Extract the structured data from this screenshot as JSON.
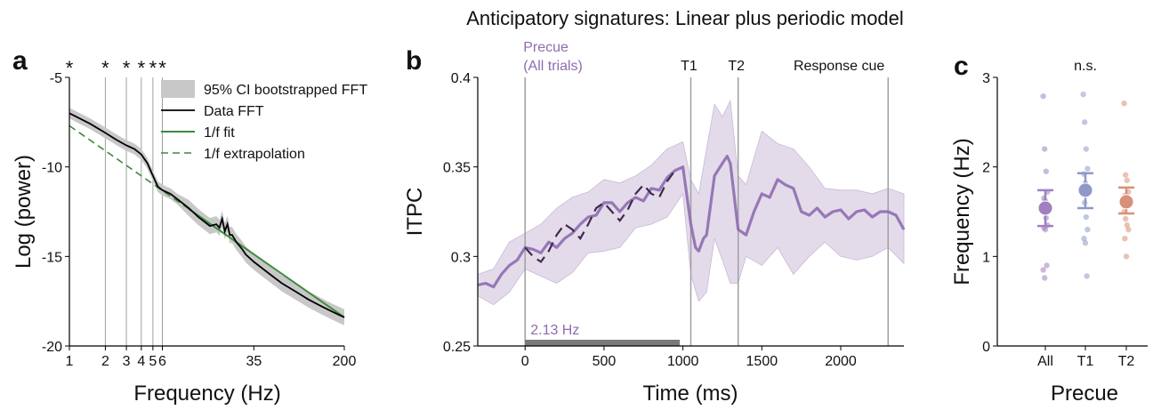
{
  "figure_title": "Anticipatory signatures: Linear plus periodic model",
  "colors": {
    "purple": "#8E6CB0",
    "purple_dark": "#3F2A4E",
    "purple_fill": "#E3DBEA",
    "green": "#3C8A3C",
    "gray_ci": "#C8C8C8",
    "vline": "#A0A0A0",
    "bar": "#7A7A7A",
    "blue": "#8F99C8",
    "orange": "#D89078",
    "all_purple": "#A080C0"
  },
  "chart_data": [
    {
      "panel": "a",
      "type": "line",
      "xlabel": "Frequency (Hz)",
      "ylabel": "Log (power)",
      "xscale": "log",
      "xlim": [
        1,
        200
      ],
      "ylim": [
        -20,
        -5
      ],
      "xticks": [
        1,
        2,
        3,
        4,
        5,
        6,
        35,
        200
      ],
      "xtick_labels": [
        "1",
        "2",
        "3",
        "4",
        "5",
        "6",
        "35",
        "200"
      ],
      "yticks": [
        -5,
        -10,
        -15,
        -20
      ],
      "ytick_labels": [
        "-5",
        "-10",
        "-15",
        "-20"
      ],
      "vlines": [
        2,
        3,
        4,
        5,
        6
      ],
      "significance_markers": [
        1,
        2,
        3,
        4,
        5,
        6
      ],
      "significance_symbol": "*",
      "legend": [
        "95% CI bootstrapped FFT",
        "Data FFT",
        "1/f fit",
        "1/f extrapolation"
      ],
      "legend_position": "top-right",
      "series": [
        {
          "name": "Data FFT",
          "x": [
            1,
            1.5,
            2,
            2.5,
            3,
            3.5,
            4,
            4.5,
            5,
            5.5,
            6,
            7,
            8,
            10,
            12,
            15,
            17,
            18,
            19,
            20,
            21,
            22,
            23,
            25,
            28,
            30,
            35,
            40,
            50,
            60,
            80,
            100,
            130,
            160,
            200
          ],
          "y": [
            -7.0,
            -7.6,
            -8.1,
            -8.5,
            -8.8,
            -9.0,
            -9.3,
            -9.8,
            -10.5,
            -11.1,
            -11.3,
            -11.5,
            -11.8,
            -12.3,
            -12.8,
            -13.3,
            -13.2,
            -13.4,
            -12.9,
            -13.6,
            -13.2,
            -13.8,
            -13.8,
            -14.2,
            -14.6,
            -14.9,
            -15.3,
            -15.6,
            -16.1,
            -16.5,
            -17.0,
            -17.4,
            -17.8,
            -18.1,
            -18.4
          ]
        },
        {
          "name": "1/f fit",
          "x": [
            10,
            200
          ],
          "y": [
            -12.35,
            -18.4
          ]
        },
        {
          "name": "1/f extrapolation",
          "x": [
            1,
            10
          ],
          "y": [
            -7.7,
            -12.35
          ]
        }
      ]
    },
    {
      "panel": "b",
      "type": "line",
      "xlabel": "Time (ms)",
      "ylabel": "ITPC",
      "xlim": [
        -300,
        2400
      ],
      "ylim": [
        0.25,
        0.4
      ],
      "xticks": [
        0,
        500,
        1000,
        1500,
        2000
      ],
      "xtick_labels": [
        "0",
        "500",
        "1000",
        "1500",
        "2000"
      ],
      "yticks": [
        0.25,
        0.3,
        0.35,
        0.4
      ],
      "ytick_labels": [
        "0.25",
        "0.3",
        "0.35",
        "0.4"
      ],
      "vlines": [
        {
          "x": 0,
          "label": "Precue\n(All trials)"
        },
        {
          "x": 1050,
          "label": "T1"
        },
        {
          "x": 1350,
          "label": "T2"
        },
        {
          "x": 2300,
          "label": "Response cue"
        }
      ],
      "bar": {
        "x0": 0,
        "x1": 980,
        "y": 0.251,
        "label": "2.13 Hz"
      },
      "series": [
        {
          "name": "ITPC",
          "x": [
            -300,
            -250,
            -200,
            -150,
            -100,
            -50,
            0,
            50,
            100,
            150,
            200,
            250,
            300,
            350,
            400,
            450,
            500,
            550,
            600,
            650,
            700,
            750,
            800,
            850,
            900,
            950,
            1000,
            1050,
            1080,
            1100,
            1130,
            1150,
            1200,
            1250,
            1280,
            1300,
            1350,
            1400,
            1450,
            1500,
            1550,
            1600,
            1650,
            1700,
            1750,
            1800,
            1850,
            1900,
            1950,
            2000,
            2050,
            2100,
            2150,
            2200,
            2250,
            2300,
            2350,
            2400
          ],
          "y": [
            0.284,
            0.285,
            0.283,
            0.29,
            0.295,
            0.298,
            0.305,
            0.304,
            0.302,
            0.308,
            0.305,
            0.31,
            0.313,
            0.318,
            0.322,
            0.323,
            0.33,
            0.33,
            0.325,
            0.33,
            0.333,
            0.331,
            0.338,
            0.337,
            0.344,
            0.348,
            0.35,
            0.318,
            0.305,
            0.303,
            0.31,
            0.312,
            0.345,
            0.352,
            0.356,
            0.352,
            0.315,
            0.312,
            0.325,
            0.335,
            0.333,
            0.343,
            0.34,
            0.338,
            0.325,
            0.323,
            0.327,
            0.322,
            0.325,
            0.326,
            0.321,
            0.325,
            0.326,
            0.322,
            0.325,
            0.325,
            0.323,
            0.315
          ]
        },
        {
          "name": "CI",
          "x": [
            -300,
            -200,
            -100,
            0,
            100,
            200,
            300,
            400,
            500,
            600,
            700,
            800,
            900,
            1000,
            1050,
            1100,
            1150,
            1200,
            1250,
            1300,
            1350,
            1400,
            1500,
            1600,
            1700,
            1800,
            1900,
            2000,
            2100,
            2200,
            2300,
            2400
          ],
          "upper": [
            0.29,
            0.293,
            0.308,
            0.313,
            0.318,
            0.327,
            0.333,
            0.336,
            0.343,
            0.341,
            0.345,
            0.351,
            0.36,
            0.364,
            0.343,
            0.335,
            0.36,
            0.385,
            0.378,
            0.387,
            0.345,
            0.34,
            0.37,
            0.363,
            0.36,
            0.35,
            0.338,
            0.337,
            0.337,
            0.335,
            0.338,
            0.335
          ],
          "lower": [
            0.278,
            0.273,
            0.28,
            0.293,
            0.289,
            0.285,
            0.291,
            0.302,
            0.303,
            0.305,
            0.316,
            0.318,
            0.322,
            0.335,
            0.29,
            0.275,
            0.28,
            0.31,
            0.298,
            0.285,
            0.285,
            0.3,
            0.295,
            0.305,
            0.29,
            0.3,
            0.308,
            0.3,
            0.298,
            0.3,
            0.305,
            0.296
          ]
        },
        {
          "name": "Fit",
          "x": [
            0,
            50,
            100,
            150,
            200,
            250,
            300,
            350,
            400,
            450,
            500,
            550,
            600,
            650,
            700,
            750,
            800,
            850,
            900,
            950
          ],
          "y": [
            0.305,
            0.3,
            0.297,
            0.303,
            0.312,
            0.318,
            0.315,
            0.31,
            0.318,
            0.327,
            0.33,
            0.325,
            0.32,
            0.326,
            0.335,
            0.34,
            0.335,
            0.333,
            0.342,
            0.348
          ]
        }
      ]
    },
    {
      "panel": "c",
      "type": "scatter",
      "xlabel": "Precue",
      "ylabel": "Frequency (Hz)",
      "ylim": [
        0,
        3
      ],
      "yticks": [
        0,
        1,
        2,
        3
      ],
      "ytick_labels": [
        "0",
        "1",
        "2",
        "3"
      ],
      "categories": [
        "All",
        "T1",
        "T2"
      ],
      "annotation": "n.s.",
      "groups": [
        {
          "name": "All",
          "mean": 1.54,
          "ci": [
            1.34,
            1.74
          ],
          "points": [
            2.79,
            2.2,
            1.95,
            1.72,
            1.65,
            1.62,
            1.58,
            1.55,
            1.5,
            1.43,
            1.35,
            1.32,
            1.3,
            0.9,
            0.85,
            0.76
          ]
        },
        {
          "name": "T1",
          "mean": 1.74,
          "ci": [
            1.54,
            1.93
          ],
          "points": [
            2.81,
            2.5,
            2.2,
            1.98,
            1.92,
            1.82,
            1.78,
            1.74,
            1.6,
            1.44,
            1.3,
            1.2,
            1.15,
            0.78
          ]
        },
        {
          "name": "T2",
          "mean": 1.61,
          "ci": [
            1.48,
            1.77
          ],
          "points": [
            2.71,
            1.91,
            1.85,
            1.72,
            1.68,
            1.62,
            1.58,
            1.5,
            1.42,
            1.35,
            1.3,
            1.2,
            1.0
          ]
        }
      ]
    }
  ]
}
